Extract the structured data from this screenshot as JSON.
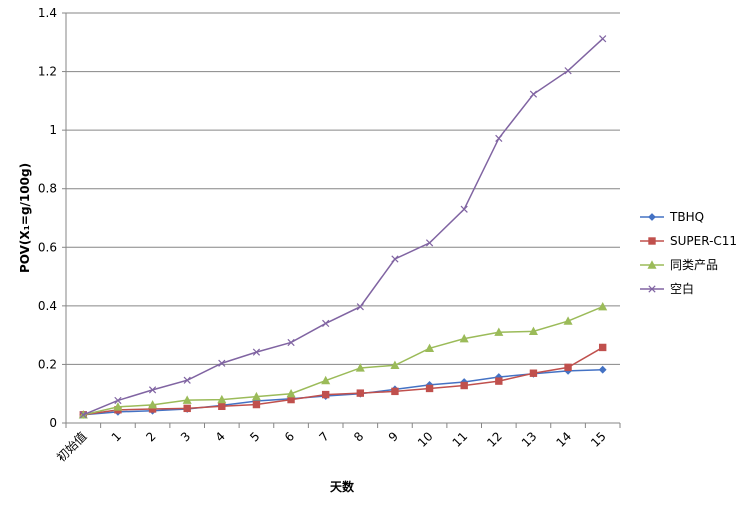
{
  "chart_data": {
    "type": "line",
    "title": "",
    "xlabel": "天数",
    "ylabel": "POV(X₁=g/100g)",
    "categories": [
      "初始值",
      "1",
      "2",
      "3",
      "4",
      "5",
      "6",
      "7",
      "8",
      "9",
      "10",
      "11",
      "12",
      "13",
      "14",
      "15"
    ],
    "ylim": [
      0,
      1.4
    ],
    "yticks": [
      "0",
      "0.2",
      "0.4",
      "0.6",
      "0.8",
      "1",
      "1.2",
      "1.4"
    ],
    "grid": "horizontal",
    "legend_position": "right",
    "series": [
      {
        "name": "TBHQ",
        "color": "#4472C4",
        "marker": "diamond",
        "values": [
          0.028,
          0.038,
          0.042,
          0.048,
          0.06,
          0.075,
          0.083,
          0.092,
          0.1,
          0.115,
          0.13,
          0.14,
          0.157,
          0.168,
          0.178,
          0.182
        ]
      },
      {
        "name": "SUPER-C11",
        "color": "#C0504D",
        "marker": "square",
        "values": [
          0.028,
          0.045,
          0.048,
          0.05,
          0.057,
          0.063,
          0.08,
          0.097,
          0.102,
          0.108,
          0.118,
          0.128,
          0.143,
          0.17,
          0.19,
          0.258
        ]
      },
      {
        "name": "同类产品",
        "color": "#9BBB59",
        "marker": "triangle",
        "values": [
          0.028,
          0.055,
          0.062,
          0.078,
          0.08,
          0.09,
          0.1,
          0.145,
          0.188,
          0.197,
          0.255,
          0.288,
          0.31,
          0.313,
          0.348,
          0.397
        ]
      },
      {
        "name": "空白",
        "color": "#8064A2",
        "marker": "x",
        "values": [
          0.028,
          0.077,
          0.113,
          0.146,
          0.204,
          0.242,
          0.275,
          0.34,
          0.397,
          0.56,
          0.615,
          0.73,
          0.972,
          1.123,
          1.203,
          1.312
        ]
      }
    ]
  }
}
